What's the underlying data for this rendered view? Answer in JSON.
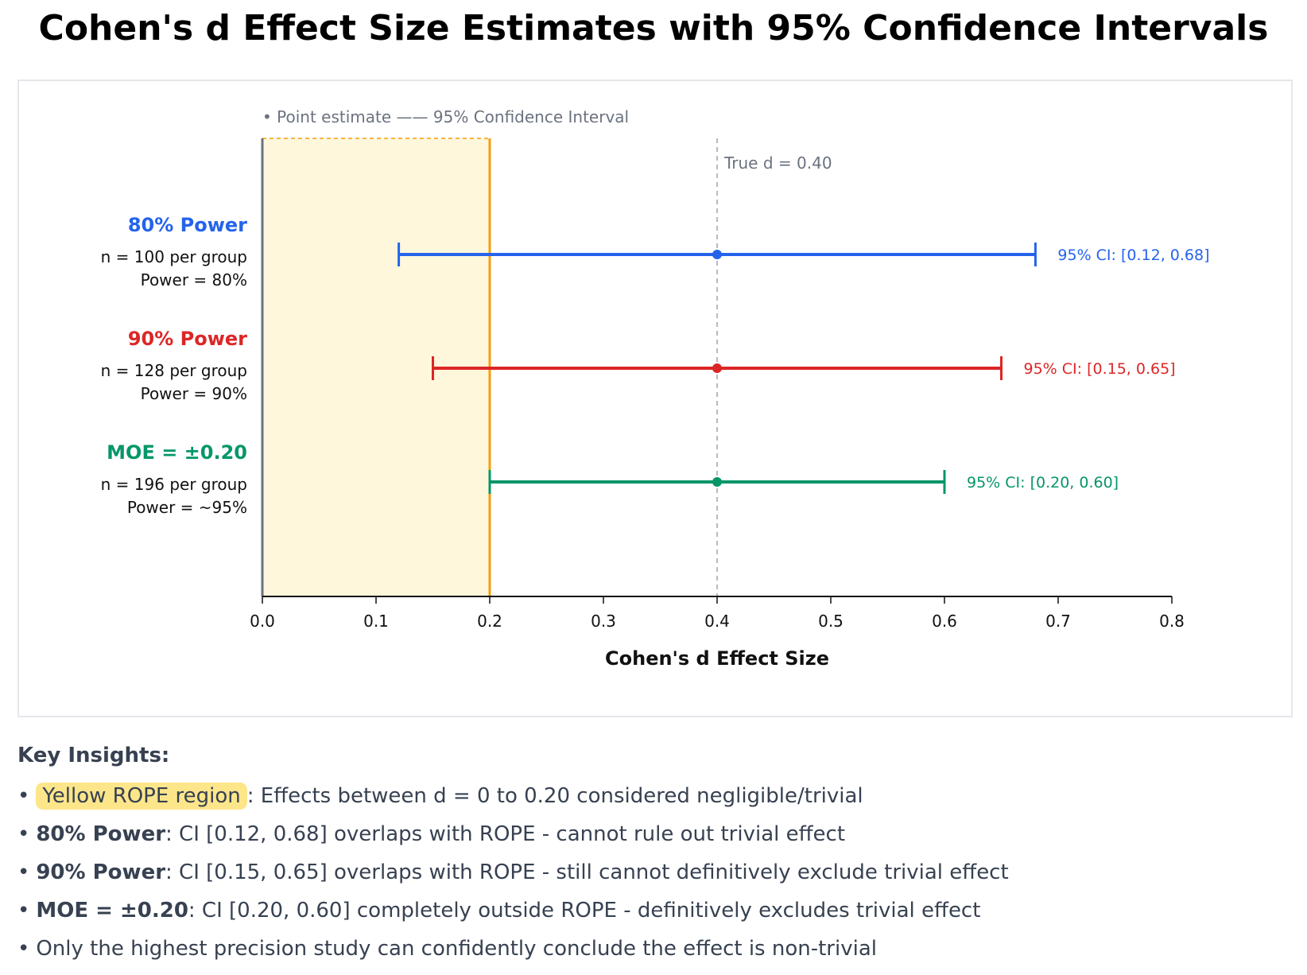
{
  "title": "Cohen's d Effect Size Estimates with 95% Confidence Intervals",
  "chart_data": {
    "type": "forest",
    "xlabel": "Cohen's d Effect Size",
    "xlim": [
      0.0,
      0.8
    ],
    "xticks": [
      0.0,
      0.1,
      0.2,
      0.3,
      0.4,
      0.5,
      0.6,
      0.7,
      0.8
    ],
    "xtick_labels": [
      "0.0",
      "0.1",
      "0.2",
      "0.3",
      "0.4",
      "0.5",
      "0.6",
      "0.7",
      "0.8"
    ],
    "legend_text": "• Point estimate —— 95% Confidence Interval",
    "rope": {
      "low": 0.0,
      "high": 0.2,
      "color": "#fef7dc",
      "border_color": "#f59e0b"
    },
    "reference_line": {
      "value": 0.4,
      "label": "True d = 0.40",
      "color": "#9ca3af"
    },
    "series": [
      {
        "name": "80% Power",
        "line1": "n = 100 per group",
        "line2": "Power = 80%",
        "estimate": 0.4,
        "ci_low": 0.12,
        "ci_high": 0.68,
        "ci_label": "95% CI: [0.12, 0.68]",
        "color": "#2563eb"
      },
      {
        "name": "90% Power",
        "line1": "n = 128 per group",
        "line2": "Power = 90%",
        "estimate": 0.4,
        "ci_low": 0.15,
        "ci_high": 0.65,
        "ci_label": "95% CI: [0.15, 0.65]",
        "color": "#dc2626"
      },
      {
        "name": "MOE = ±0.20",
        "line1": "n = 196 per group",
        "line2": "Power = ~95%",
        "estimate": 0.4,
        "ci_low": 0.2,
        "ci_high": 0.6,
        "ci_label": "95% CI: [0.20, 0.60]",
        "color": "#059669"
      }
    ]
  },
  "insights": {
    "heading": "Key Insights:",
    "items": [
      {
        "bold": "",
        "chip": "Yellow ROPE region",
        "text": ": Effects between d = 0 to 0.20 considered negligible/trivial"
      },
      {
        "bold": "80% Power",
        "chip": "",
        "text": ": CI [0.12, 0.68] overlaps with ROPE - cannot rule out trivial effect"
      },
      {
        "bold": "90% Power",
        "chip": "",
        "text": ": CI [0.15, 0.65] overlaps with ROPE - still cannot definitively exclude trivial effect"
      },
      {
        "bold": "MOE = ±0.20",
        "chip": "",
        "text": ": CI [0.20, 0.60] completely outside ROPE - definitively excludes trivial effect"
      },
      {
        "bold": "",
        "chip": "",
        "text": "Only the highest precision study can confidently conclude the effect is non-trivial"
      }
    ]
  }
}
